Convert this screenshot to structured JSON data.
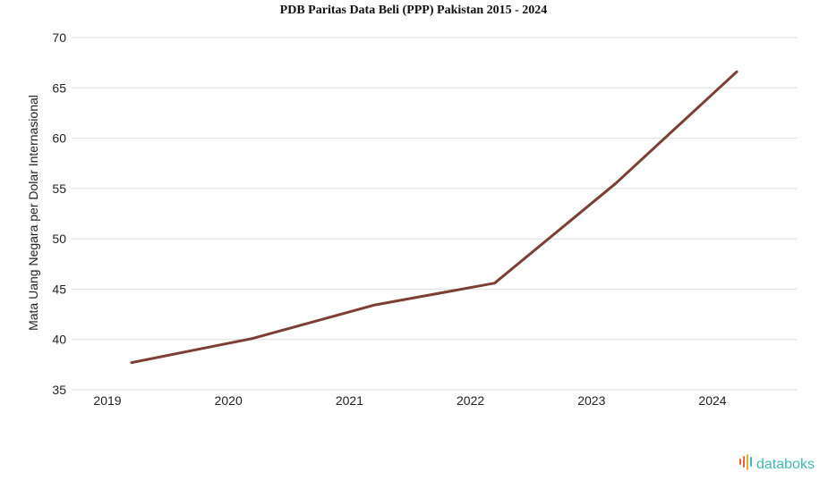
{
  "chart_data": {
    "type": "line",
    "title": "PDB Paritas Data Beli (PPP) Pakistan 2015 - 2024",
    "ylabel": "Mata Uang Negara per Dolar Internasional",
    "xlabel": "",
    "x": [
      "2019",
      "2020",
      "2021",
      "2022",
      "2023",
      "2024"
    ],
    "series": [
      {
        "values": [
          37.7,
          40.1,
          43.4,
          45.6,
          55.5,
          66.6
        ]
      }
    ],
    "ylim": [
      35,
      70
    ],
    "yticks": [
      35,
      40,
      45,
      50,
      55,
      60,
      65,
      70
    ],
    "grid": true,
    "line_color": "#7b3f35"
  },
  "brand": {
    "name": "databoks",
    "color": "#3fb8b0",
    "icon_colors": [
      "#e8603c",
      "#f0a830",
      "#3fb8b0"
    ]
  }
}
